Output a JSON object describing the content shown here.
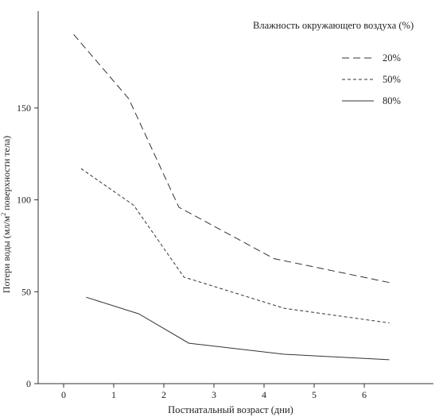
{
  "chart_data": {
    "type": "line",
    "ylabel": "Потери воды (мл/м² поверхности тела)",
    "ylabel_main": "Потери воды (мл/м",
    "ylabel_sup": "2",
    "ylabel_rest": " поверхности тела)",
    "xlabel": "Постнатальный возраст (дни)",
    "xlim": [
      -0.35,
      7.2
    ],
    "ylim": [
      0,
      200
    ],
    "x_ticks": [
      0,
      1,
      2,
      3,
      4,
      5,
      6
    ],
    "y_ticks": [
      0,
      50,
      100,
      150
    ],
    "legend": {
      "title": "Влажность окружающего воздуха (%)",
      "position": "top-right"
    },
    "series": [
      {
        "name": "20%",
        "dash": "9,5",
        "x": [
          0.2,
          1.3,
          2.3,
          4.2,
          6.5
        ],
        "y": [
          190,
          155,
          96,
          68,
          55
        ]
      },
      {
        "name": "50%",
        "dash": "4,3",
        "x": [
          0.35,
          1.4,
          2.4,
          4.4,
          6.5
        ],
        "y": [
          117,
          97,
          58,
          41,
          33
        ]
      },
      {
        "name": "80%",
        "dash": "",
        "x": [
          0.45,
          1.5,
          2.5,
          4.4,
          6.5
        ],
        "y": [
          47,
          38,
          22,
          16,
          13
        ]
      }
    ]
  }
}
